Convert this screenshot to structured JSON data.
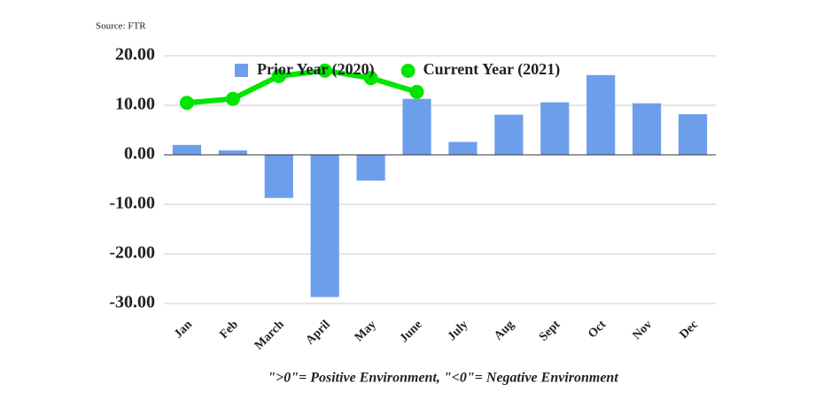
{
  "chart_data": {
    "type": "bar",
    "source": "Source: FTR",
    "footnote": "\">0\"= Positive Environment, \"<0\"= Negative Environment",
    "categories": [
      "Jan",
      "Feb",
      "March",
      "April",
      "May",
      "June",
      "July",
      "Aug",
      "Sept",
      "Oct",
      "Nov",
      "Dec"
    ],
    "series": [
      {
        "name": "Prior Year (2020)",
        "type": "bar",
        "color": "#6d9eeb",
        "values": [
          2.0,
          0.9,
          -8.7,
          -28.7,
          -5.2,
          11.3,
          2.6,
          8.1,
          10.6,
          16.1,
          10.4,
          8.2
        ]
      },
      {
        "name": "Current Year (2021)",
        "type": "line",
        "color": "#00e600",
        "values": [
          10.5,
          11.3,
          15.9,
          17.0,
          15.5,
          12.7,
          null,
          null,
          null,
          null,
          null,
          null
        ]
      }
    ],
    "ylim": [
      -30,
      20
    ],
    "yticks": [
      {
        "value": -30,
        "label": "-30.00"
      },
      {
        "value": -20,
        "label": "-20.00"
      },
      {
        "value": -10,
        "label": "-10.00"
      },
      {
        "value": 0,
        "label": "0.00"
      },
      {
        "value": 10,
        "label": "10.00"
      },
      {
        "value": 20,
        "label": "20.00"
      }
    ],
    "grid": true,
    "legend": "top"
  }
}
